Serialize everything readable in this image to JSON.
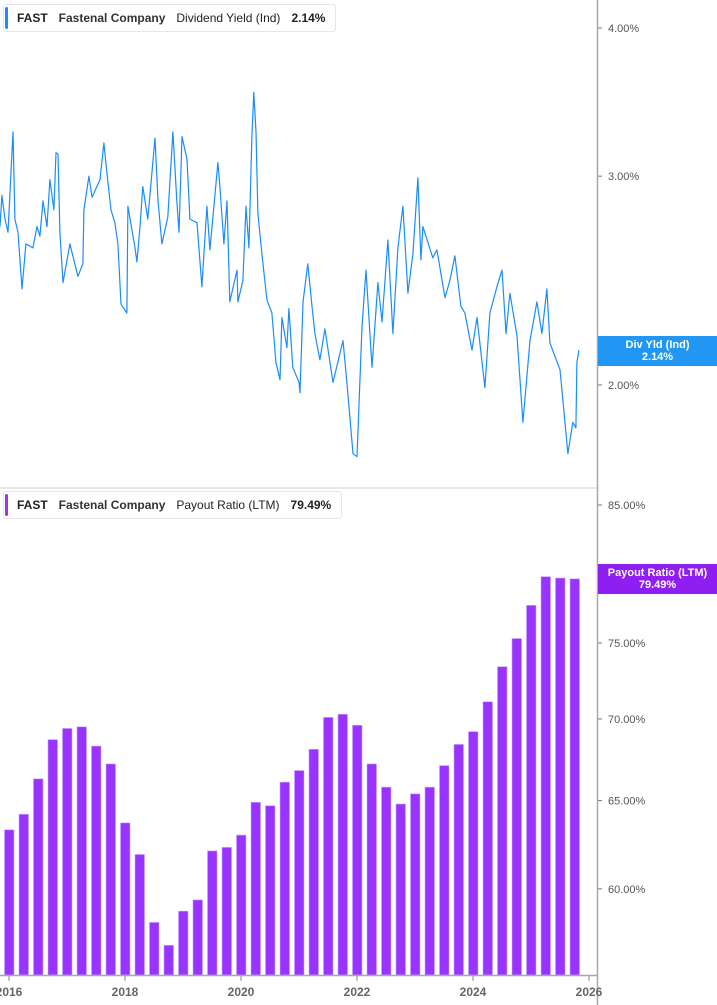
{
  "colors": {
    "yield_line": "#1a8cff",
    "yield_badge": "#2196f3",
    "payout_bar": "#9933ff",
    "payout_badge": "#8f1ff0"
  },
  "top_legend": {
    "ticker": "FAST",
    "company": "Fastenal Company",
    "metric": "Dividend Yield (Ind)",
    "value": "2.14%"
  },
  "top_badge": {
    "label": "Div Yld (Ind)",
    "value": "2.14%"
  },
  "bottom_legend": {
    "ticker": "FAST",
    "company": "Fastenal Company",
    "metric": "Payout Ratio (LTM)",
    "value": "79.49%"
  },
  "bottom_badge": {
    "label": "Payout Ratio (LTM)",
    "value": "79.49%"
  },
  "chart_data": [
    {
      "type": "line",
      "scale": "log",
      "yaxis_position": "right",
      "ylim": [
        1.65,
        4.2
      ],
      "y_ticks": [
        "4.00%",
        "3.00%",
        "2.00%"
      ],
      "y_tick_values": [
        4.0,
        3.0,
        2.0
      ],
      "grid": false,
      "series": [
        {
          "name": "Dividend Yield (Ind)",
          "points": [
            [
              "2015-11-05",
              2.72
            ],
            [
              "2015-11-17",
              2.89
            ],
            [
              "2015-12-06",
              2.76
            ],
            [
              "2015-12-25",
              2.69
            ],
            [
              "2016-01-26",
              3.27
            ],
            [
              "2016-02-08",
              2.76
            ],
            [
              "2016-02-27",
              2.69
            ],
            [
              "2016-03-22",
              2.41
            ],
            [
              "2016-04-16",
              2.63
            ],
            [
              "2016-05-30",
              2.61
            ],
            [
              "2016-06-25",
              2.72
            ],
            [
              "2016-07-13",
              2.67
            ],
            [
              "2016-08-02",
              2.86
            ],
            [
              "2016-08-27",
              2.72
            ],
            [
              "2016-09-15",
              2.98
            ],
            [
              "2016-10-10",
              2.81
            ],
            [
              "2016-10-23",
              3.14
            ],
            [
              "2016-11-05",
              3.13
            ],
            [
              "2016-11-17",
              2.69
            ],
            [
              "2016-12-06",
              2.44
            ],
            [
              "2017-01-19",
              2.63
            ],
            [
              "2017-03-09",
              2.47
            ],
            [
              "2017-04-10",
              2.53
            ],
            [
              "2017-04-16",
              2.81
            ],
            [
              "2017-05-17",
              3.0
            ],
            [
              "2017-06-06",
              2.88
            ],
            [
              "2017-07-26",
              2.98
            ],
            [
              "2017-08-20",
              3.2
            ],
            [
              "2017-09-09",
              3.02
            ],
            [
              "2017-10-04",
              2.81
            ],
            [
              "2017-10-29",
              2.74
            ],
            [
              "2017-11-17",
              2.63
            ],
            [
              "2017-12-06",
              2.34
            ],
            [
              "2018-01-13",
              2.3
            ],
            [
              "2018-01-19",
              2.83
            ],
            [
              "2018-03-03",
              2.61
            ],
            [
              "2018-03-15",
              2.54
            ],
            [
              "2018-04-04",
              2.72
            ],
            [
              "2018-04-22",
              2.94
            ],
            [
              "2018-05-23",
              2.76
            ],
            [
              "2018-07-07",
              3.23
            ],
            [
              "2018-07-26",
              2.86
            ],
            [
              "2018-08-20",
              2.63
            ],
            [
              "2018-09-27",
              2.77
            ],
            [
              "2018-10-29",
              3.27
            ],
            [
              "2018-11-23",
              2.86
            ],
            [
              "2018-12-06",
              2.69
            ],
            [
              "2018-12-25",
              3.24
            ],
            [
              "2019-01-26",
              3.1
            ],
            [
              "2019-02-14",
              2.76
            ],
            [
              "2019-03-28",
              2.74
            ],
            [
              "2019-04-29",
              2.42
            ],
            [
              "2019-05-30",
              2.83
            ],
            [
              "2019-06-18",
              2.6
            ],
            [
              "2019-08-08",
              3.08
            ],
            [
              "2019-08-20",
              2.94
            ],
            [
              "2019-09-15",
              2.63
            ],
            [
              "2019-10-04",
              2.86
            ],
            [
              "2019-10-22",
              2.35
            ],
            [
              "2019-12-06",
              2.5
            ],
            [
              "2019-12-12",
              2.35
            ],
            [
              "2020-01-13",
              2.45
            ],
            [
              "2020-02-02",
              2.83
            ],
            [
              "2020-02-20",
              2.61
            ],
            [
              "2020-03-09",
              3.24
            ],
            [
              "2020-03-21",
              3.53
            ],
            [
              "2020-04-04",
              3.27
            ],
            [
              "2020-04-16",
              2.79
            ],
            [
              "2020-05-11",
              2.58
            ],
            [
              "2020-06-12",
              2.36
            ],
            [
              "2020-07-13",
              2.3
            ],
            [
              "2020-08-08",
              2.09
            ],
            [
              "2020-09-03",
              2.02
            ],
            [
              "2020-09-15",
              2.28
            ],
            [
              "2020-10-16",
              2.15
            ],
            [
              "2020-10-29",
              2.32
            ],
            [
              "2020-11-23",
              2.07
            ],
            [
              "2021-01-01",
              2.01
            ],
            [
              "2021-01-07",
              1.97
            ],
            [
              "2021-01-26",
              2.35
            ],
            [
              "2021-02-26",
              2.53
            ],
            [
              "2021-03-22",
              2.33
            ],
            [
              "2021-04-10",
              2.21
            ],
            [
              "2021-05-11",
              2.1
            ],
            [
              "2021-06-12",
              2.23
            ],
            [
              "2021-08-02",
              2.01
            ],
            [
              "2021-10-04",
              2.18
            ],
            [
              "2021-10-29",
              2.01
            ],
            [
              "2021-12-06",
              1.75
            ],
            [
              "2022-01-01",
              1.74
            ],
            [
              "2022-02-02",
              2.24
            ],
            [
              "2022-02-27",
              2.5
            ],
            [
              "2022-04-04",
              2.07
            ],
            [
              "2022-05-11",
              2.44
            ],
            [
              "2022-06-06",
              2.26
            ],
            [
              "2022-07-13",
              2.65
            ],
            [
              "2022-08-14",
              2.21
            ],
            [
              "2022-09-15",
              2.61
            ],
            [
              "2022-10-16",
              2.83
            ],
            [
              "2022-11-17",
              2.39
            ],
            [
              "2022-12-18",
              2.58
            ],
            [
              "2023-01-19",
              2.99
            ],
            [
              "2023-02-08",
              2.55
            ],
            [
              "2023-02-20",
              2.72
            ],
            [
              "2023-04-22",
              2.56
            ],
            [
              "2023-05-17",
              2.6
            ],
            [
              "2023-07-07",
              2.37
            ],
            [
              "2023-08-08",
              2.45
            ],
            [
              "2023-09-09",
              2.57
            ],
            [
              "2023-10-16",
              2.33
            ],
            [
              "2023-11-11",
              2.3
            ],
            [
              "2023-12-25",
              2.14
            ],
            [
              "2024-01-26",
              2.28
            ],
            [
              "2024-03-15",
              1.99
            ],
            [
              "2024-04-16",
              2.3
            ],
            [
              "2024-05-30",
              2.42
            ],
            [
              "2024-07-01",
              2.5
            ],
            [
              "2024-07-26",
              2.21
            ],
            [
              "2024-08-20",
              2.39
            ],
            [
              "2024-10-04",
              2.2
            ],
            [
              "2024-11-11",
              1.86
            ],
            [
              "2024-12-25",
              2.18
            ],
            [
              "2025-02-08",
              2.35
            ],
            [
              "2025-03-09",
              2.21
            ],
            [
              "2025-04-10",
              2.41
            ],
            [
              "2025-04-29",
              2.17
            ],
            [
              "2025-07-01",
              2.06
            ],
            [
              "2025-08-20",
              1.75
            ],
            [
              "2025-09-21",
              1.86
            ],
            [
              "2025-10-10",
              1.84
            ],
            [
              "2025-10-16",
              2.09
            ],
            [
              "2025-10-29",
              2.14
            ]
          ]
        }
      ]
    },
    {
      "type": "bar",
      "scale": "log",
      "yaxis_position": "right",
      "ylim": [
        54.5,
        85
      ],
      "y_ticks": [
        "85.00%",
        "75.00%",
        "70.00%",
        "65.00%",
        "60.00%"
      ],
      "y_tick_values": [
        85,
        75,
        70,
        65,
        60
      ],
      "x_ticks": [
        "2016",
        "2018",
        "2020",
        "2022",
        "2024",
        "2026"
      ],
      "grid": false,
      "categories": [
        "2016 Q1",
        "2016 Q2",
        "2016 Q3",
        "2016 Q4",
        "2017 Q1",
        "2017 Q2",
        "2017 Q3",
        "2017 Q4",
        "2018 Q1",
        "2018 Q2",
        "2018 Q3",
        "2018 Q4",
        "2019 Q1",
        "2019 Q2",
        "2019 Q3",
        "2019 Q4",
        "2020 Q1",
        "2020 Q2",
        "2020 Q3",
        "2020 Q4",
        "2021 Q1",
        "2021 Q2",
        "2021 Q3",
        "2021 Q4",
        "2022 Q1",
        "2022 Q2",
        "2022 Q3",
        "2022 Q4",
        "2023 Q1",
        "2023 Q2",
        "2023 Q3",
        "2023 Q4",
        "2024 Q1",
        "2024 Q2",
        "2024 Q3",
        "2024 Q4",
        "2025 Q1",
        "2025 Q2",
        "2025 Q3",
        "2025 Q4"
      ],
      "series": [
        {
          "name": "Payout Ratio (LTM)",
          "values": [
            63.3,
            64.2,
            66.3,
            68.7,
            69.4,
            69.5,
            68.3,
            67.2,
            63.7,
            61.9,
            58.2,
            57.0,
            58.8,
            59.4,
            62.1,
            62.3,
            63.0,
            64.9,
            64.7,
            66.1,
            66.8,
            68.1,
            70.1,
            70.3,
            69.6,
            67.2,
            65.8,
            64.8,
            65.4,
            65.8,
            67.1,
            68.4,
            69.2,
            71.1,
            73.4,
            75.3,
            77.6,
            79.65,
            79.55,
            79.49
          ]
        }
      ]
    }
  ]
}
